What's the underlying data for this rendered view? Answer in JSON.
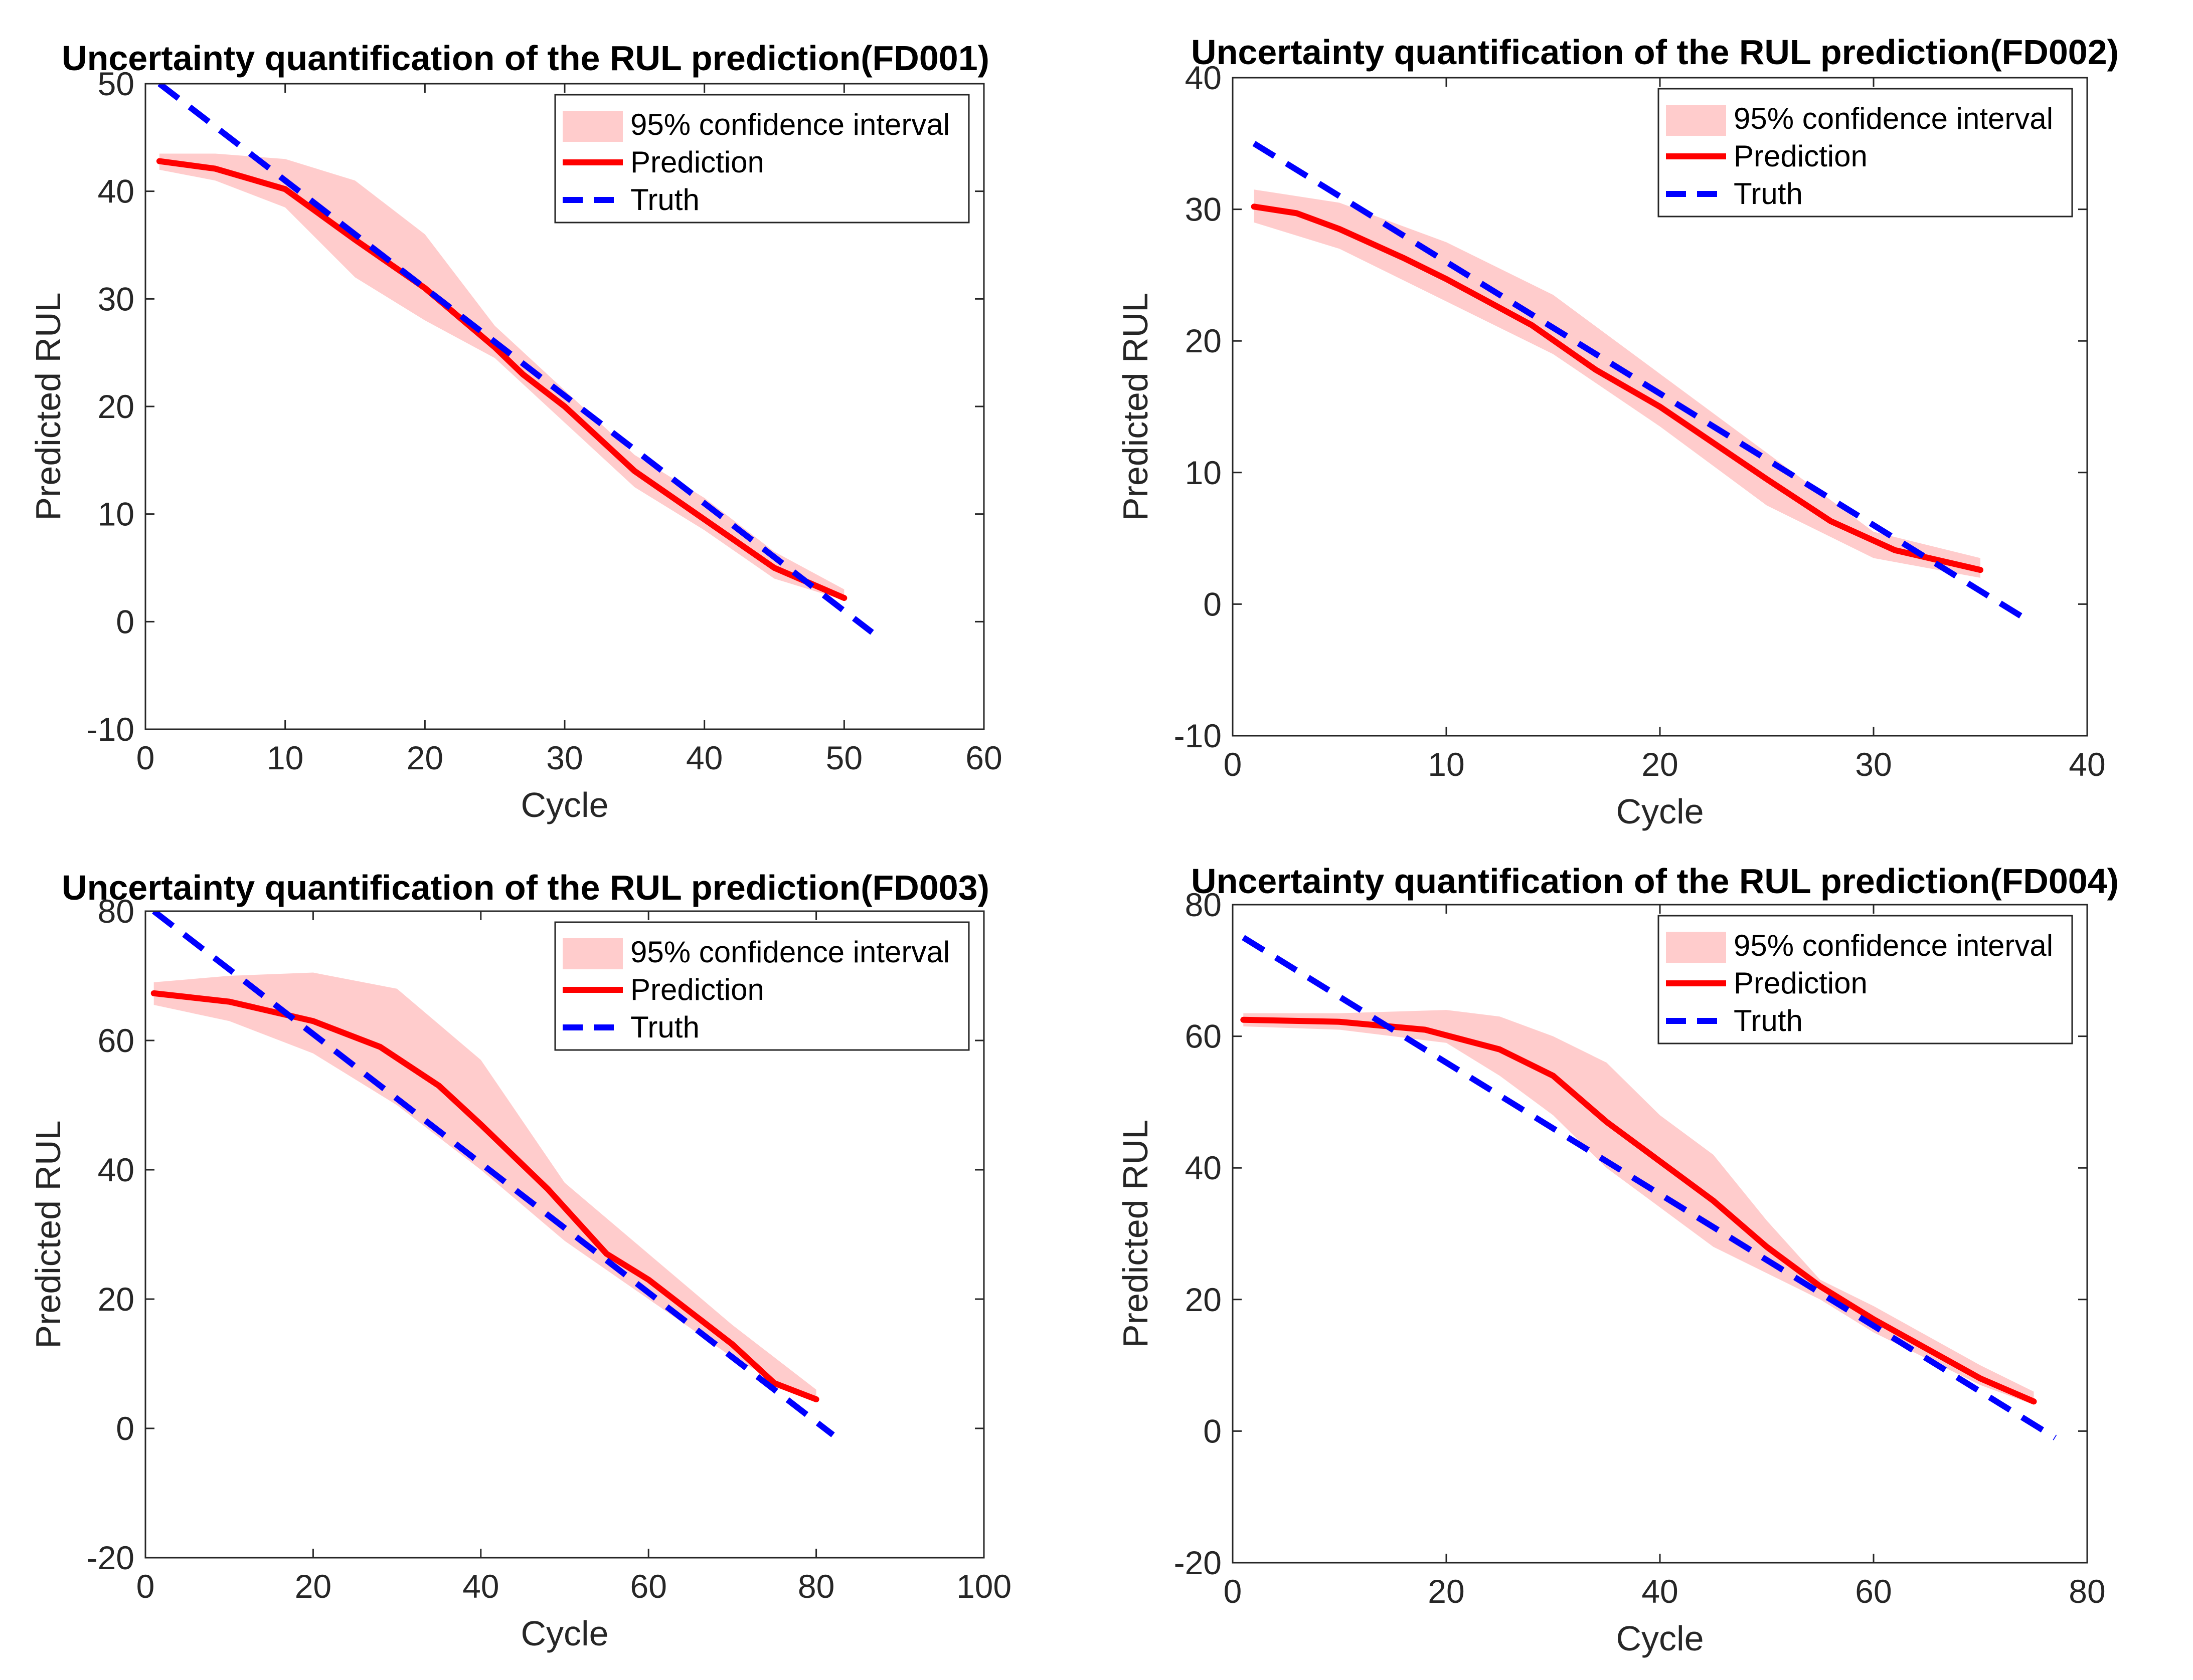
{
  "chart_data": [
    {
      "type": "line",
      "title": "Uncertainty quantification of the RUL prediction(FD001)",
      "xlabel": "Cycle",
      "ylabel": "Predicted RUL",
      "xlim": [
        0,
        60
      ],
      "ylim": [
        -10,
        50
      ],
      "xticks": [
        0,
        10,
        20,
        30,
        40,
        50,
        60
      ],
      "yticks": [
        -10,
        0,
        10,
        20,
        30,
        40,
        50
      ],
      "legend": {
        "position": "top-right",
        "entries": [
          "95% confidence interval",
          "Prediction",
          "Truth"
        ]
      },
      "series": [
        {
          "name": "Prediction",
          "color": "#ff0000",
          "x": [
            1,
            5,
            10,
            15,
            20,
            25,
            27,
            30,
            35,
            40,
            45,
            50
          ],
          "y": [
            42.8,
            42.1,
            40.2,
            35.5,
            31.0,
            25.5,
            23.0,
            20.0,
            14.0,
            9.5,
            5.0,
            2.2
          ]
        },
        {
          "name": "Truth",
          "color": "#0000ff",
          "style": "dashed",
          "x": [
            1,
            52
          ],
          "y": [
            50,
            -1
          ]
        },
        {
          "name": "95% confidence interval",
          "color": "#ffcccc",
          "style": "band",
          "x": [
            1,
            5,
            10,
            15,
            20,
            25,
            30,
            35,
            40,
            45,
            50
          ],
          "lower": [
            42.0,
            41.0,
            38.5,
            32.0,
            28.0,
            24.5,
            18.5,
            12.5,
            8.5,
            4.0,
            2.0
          ],
          "upper": [
            43.5,
            43.5,
            43.0,
            41.0,
            36.0,
            27.5,
            21.5,
            15.5,
            11.5,
            6.5,
            3.0
          ]
        }
      ]
    },
    {
      "type": "line",
      "title": "Uncertainty quantification of the RUL prediction(FD002)",
      "xlabel": "Cycle",
      "ylabel": "Predicted RUL",
      "xlim": [
        0,
        40
      ],
      "ylim": [
        -10,
        40
      ],
      "xticks": [
        0,
        10,
        20,
        30,
        40
      ],
      "yticks": [
        -10,
        0,
        10,
        20,
        30,
        40
      ],
      "legend": {
        "position": "top-right",
        "entries": [
          "95% confidence interval",
          "Prediction",
          "Truth"
        ]
      },
      "series": [
        {
          "name": "Prediction",
          "color": "#ff0000",
          "x": [
            1,
            3,
            5,
            8,
            10,
            14,
            17,
            20,
            25,
            28,
            31,
            35
          ],
          "y": [
            30.2,
            29.7,
            28.5,
            26.3,
            24.7,
            21.2,
            17.8,
            15.0,
            9.5,
            6.3,
            4.1,
            2.6
          ]
        },
        {
          "name": "Truth",
          "color": "#0000ff",
          "style": "dashed",
          "x": [
            1,
            37
          ],
          "y": [
            35,
            -1
          ]
        },
        {
          "name": "95% confidence interval",
          "color": "#ffcccc",
          "style": "band",
          "x": [
            1,
            5,
            10,
            15,
            20,
            25,
            30,
            35
          ],
          "lower": [
            29.0,
            27.0,
            23.0,
            19.0,
            13.5,
            7.5,
            3.5,
            2.0
          ],
          "upper": [
            31.5,
            30.5,
            27.5,
            23.5,
            17.5,
            11.5,
            5.5,
            3.5
          ]
        }
      ]
    },
    {
      "type": "line",
      "title": "Uncertainty quantification of the RUL prediction(FD003)",
      "xlabel": "Cycle",
      "ylabel": "Predicted RUL",
      "xlim": [
        0,
        100
      ],
      "ylim": [
        -20,
        80
      ],
      "xticks": [
        0,
        20,
        40,
        60,
        80,
        100
      ],
      "yticks": [
        -20,
        0,
        20,
        40,
        60,
        80
      ],
      "legend": {
        "position": "top-right",
        "entries": [
          "95% confidence interval",
          "Prediction",
          "Truth"
        ]
      },
      "series": [
        {
          "name": "Prediction",
          "color": "#ff0000",
          "x": [
            1,
            10,
            20,
            28,
            35,
            40,
            48,
            55,
            60,
            70,
            75,
            80
          ],
          "y": [
            67.3,
            66.0,
            63.0,
            59.0,
            53.0,
            47.0,
            37.0,
            27.0,
            23.0,
            13.0,
            7.0,
            4.5
          ]
        },
        {
          "name": "Truth",
          "color": "#0000ff",
          "style": "dashed",
          "x": [
            1,
            82
          ],
          "y": [
            80,
            -1
          ]
        },
        {
          "name": "95% confidence interval",
          "color": "#ffcccc",
          "style": "band",
          "x": [
            1,
            10,
            20,
            30,
            40,
            50,
            60,
            70,
            80
          ],
          "lower": [
            65.5,
            63.0,
            58.0,
            50.0,
            40.0,
            29.0,
            20.0,
            11.0,
            4.0
          ],
          "upper": [
            69.0,
            70.0,
            70.5,
            68.0,
            57.0,
            38.0,
            27.0,
            16.0,
            6.0
          ]
        }
      ]
    },
    {
      "type": "line",
      "title": "Uncertainty quantification of the RUL prediction(FD004)",
      "xlabel": "Cycle",
      "ylabel": "Predicted RUL",
      "xlim": [
        0,
        80
      ],
      "ylim": [
        -20,
        80
      ],
      "xticks": [
        0,
        20,
        40,
        60,
        80
      ],
      "yticks": [
        -20,
        0,
        20,
        40,
        60,
        80
      ],
      "legend": {
        "position": "top-right",
        "entries": [
          "95% confidence interval",
          "Prediction",
          "Truth"
        ]
      },
      "series": [
        {
          "name": "Prediction",
          "color": "#ff0000",
          "x": [
            1,
            10,
            18,
            25,
            30,
            35,
            40,
            45,
            50,
            55,
            60,
            70,
            75
          ],
          "y": [
            62.5,
            62.2,
            61.0,
            58.0,
            54.0,
            47.0,
            41.0,
            35.0,
            28.0,
            22.0,
            17.0,
            8.0,
            4.5
          ]
        },
        {
          "name": "Truth",
          "color": "#0000ff",
          "style": "dashed",
          "x": [
            1,
            77
          ],
          "y": [
            75,
            -1
          ]
        },
        {
          "name": "95% confidence interval",
          "color": "#ffcccc",
          "style": "band",
          "x": [
            1,
            10,
            20,
            25,
            30,
            35,
            40,
            45,
            50,
            55,
            60,
            70,
            75
          ],
          "lower": [
            61.5,
            61.0,
            59.0,
            54.0,
            48.0,
            40.0,
            34.0,
            28.0,
            24.0,
            20.0,
            15.0,
            7.0,
            4.0
          ],
          "upper": [
            63.5,
            63.5,
            64.0,
            63.0,
            60.0,
            56.0,
            48.0,
            42.0,
            32.0,
            23.0,
            19.0,
            10.0,
            6.0
          ]
        }
      ]
    }
  ]
}
